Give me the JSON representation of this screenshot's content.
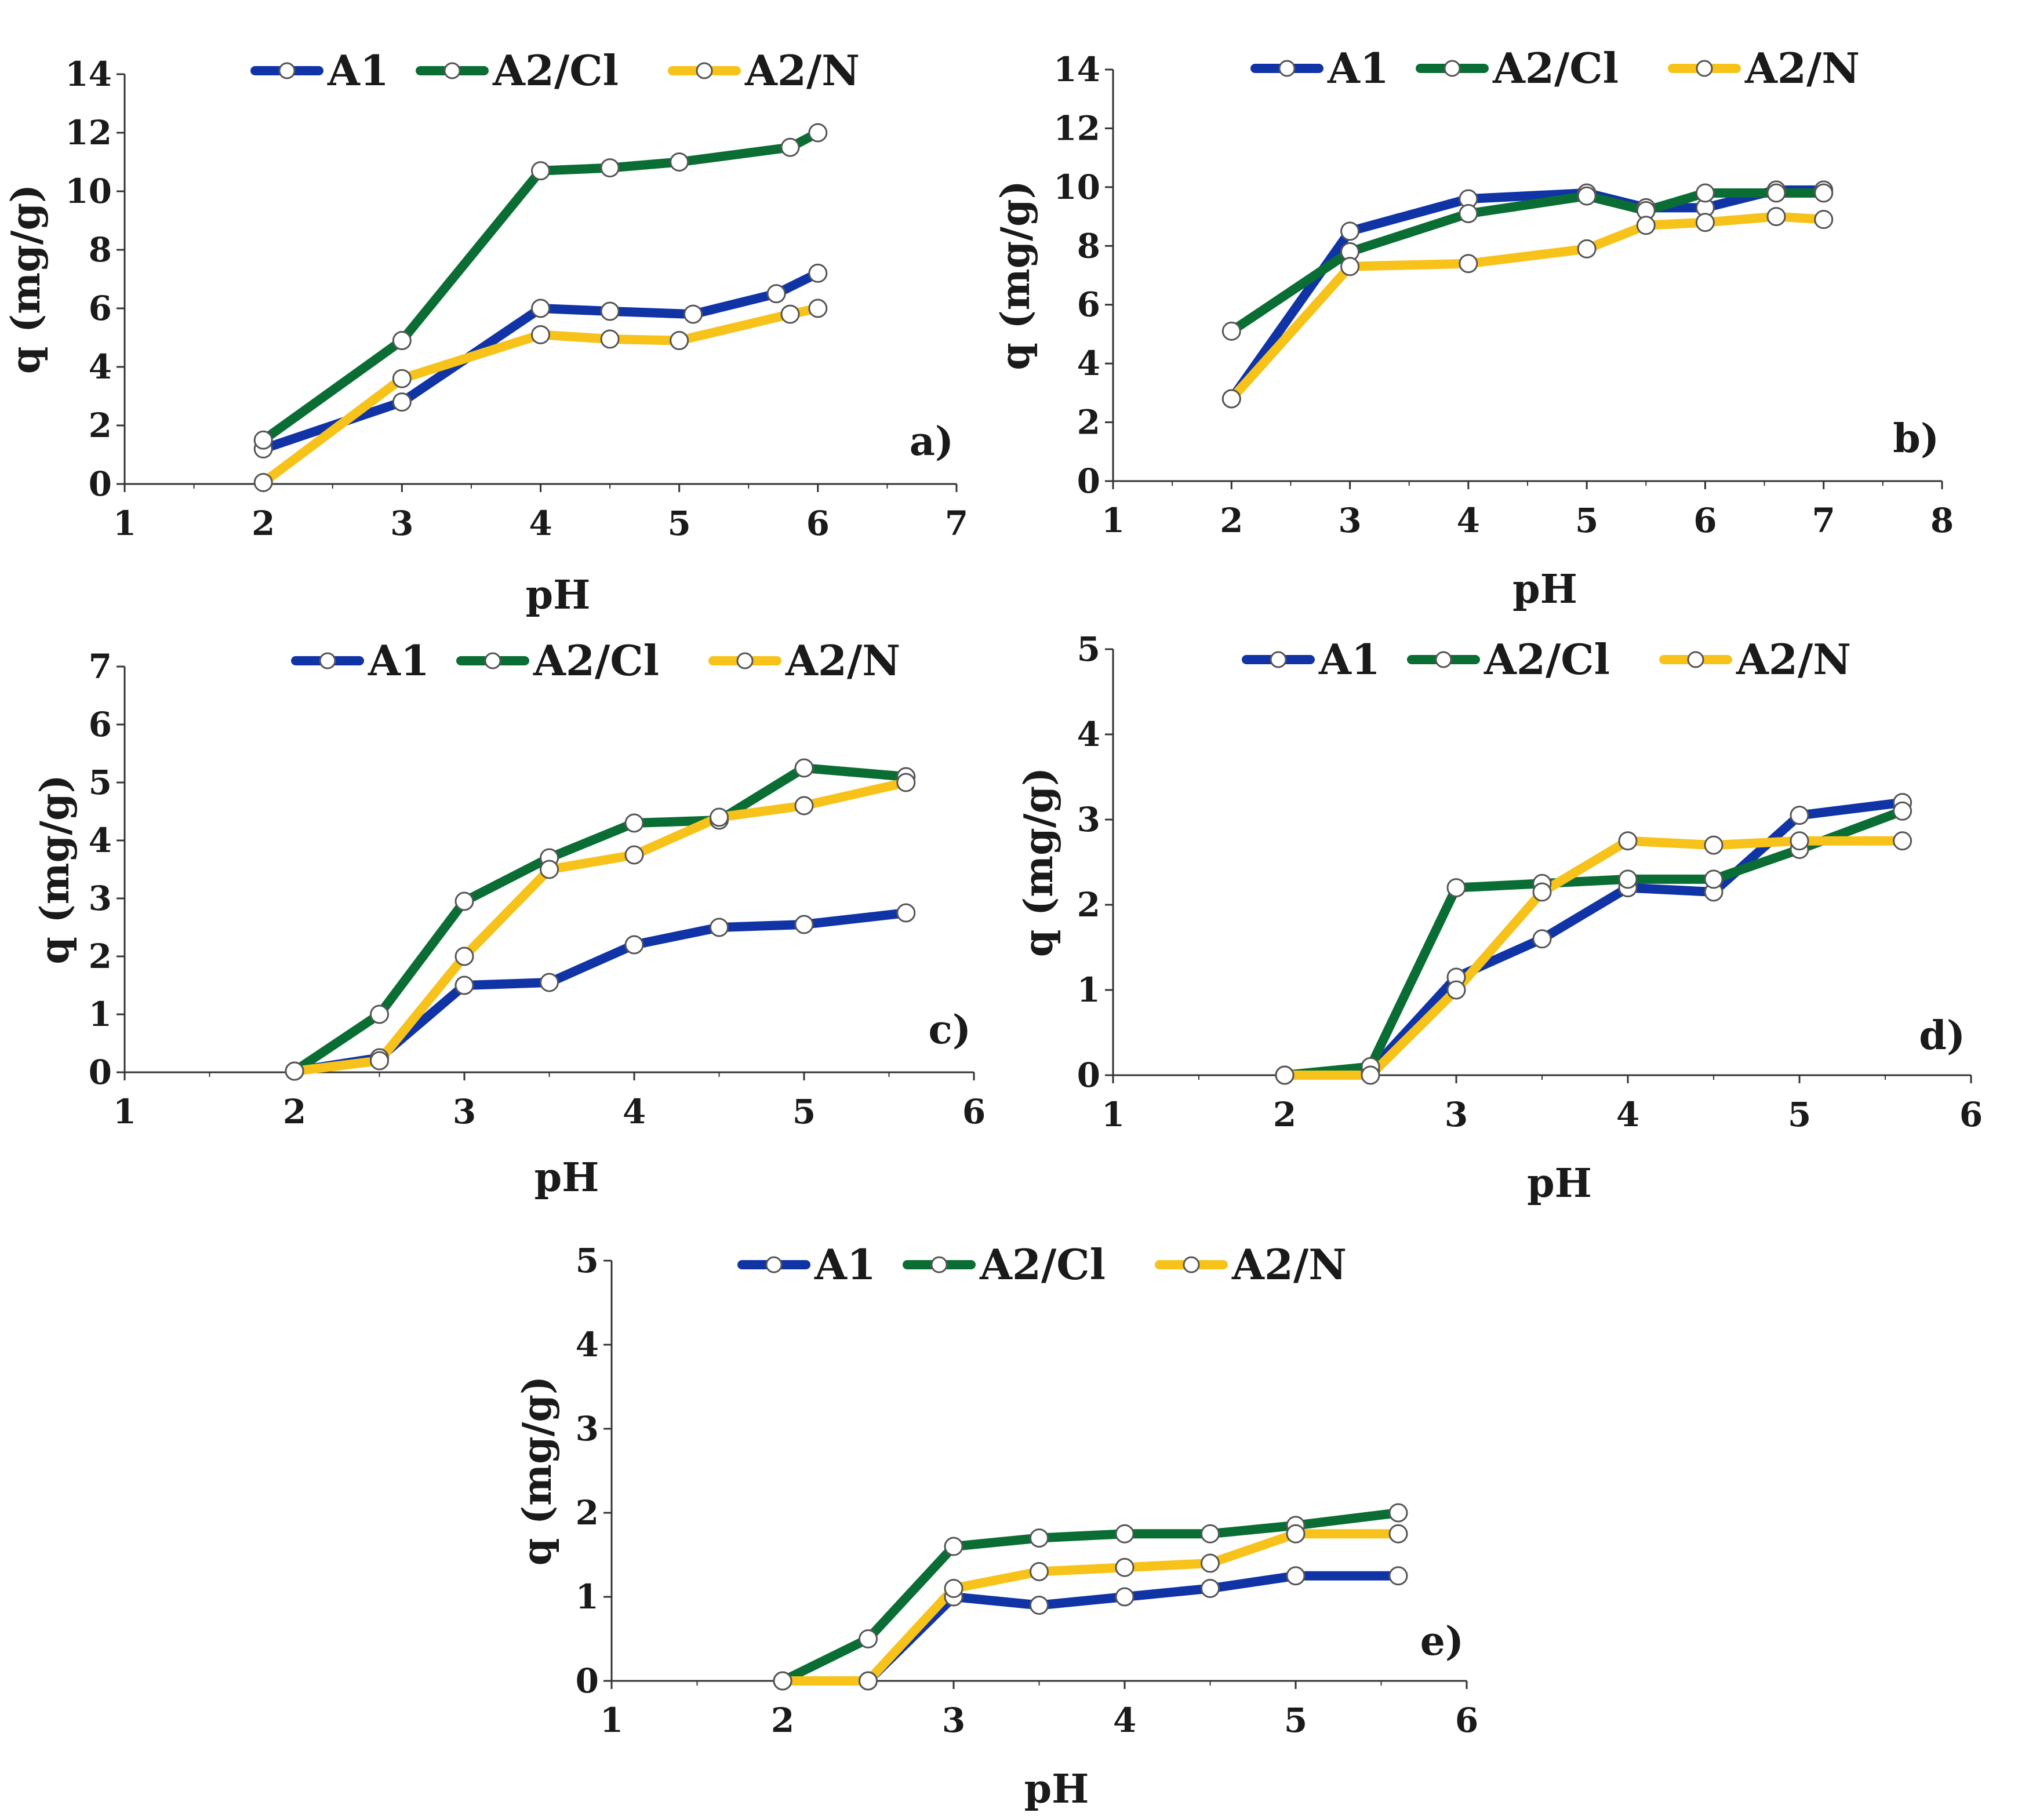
{
  "colors": {
    "A1": "#1034a6",
    "A2/Cl": "#0a6e34",
    "A2/N": "#f7c21a",
    "axis": "#333333",
    "marker_fill": "#ffffff",
    "marker_stroke": "#555555"
  },
  "chart_data": [
    {
      "id": "a",
      "type": "line",
      "tag": "a)",
      "xlabel": "pH",
      "ylabel": "q (mg/g)",
      "xlim": [
        1,
        7
      ],
      "ylim": [
        0,
        14
      ],
      "xticks": [
        1,
        2,
        3,
        4,
        5,
        6,
        7
      ],
      "yticks": [
        0,
        2,
        4,
        6,
        8,
        10,
        12,
        14
      ],
      "legend": [
        "A1",
        "A2/Cl",
        "A2/N"
      ],
      "series": [
        {
          "name": "A1",
          "x": [
            2,
            3,
            4,
            4.5,
            5.1,
            5.7,
            6
          ],
          "y": [
            1.2,
            2.8,
            6.0,
            5.9,
            5.8,
            6.5,
            7.2
          ]
        },
        {
          "name": "A2/Cl",
          "x": [
            2,
            3,
            4,
            4.5,
            5,
            5.8,
            6
          ],
          "y": [
            1.5,
            4.9,
            10.7,
            10.8,
            11.0,
            11.5,
            12.0
          ]
        },
        {
          "name": "A2/N",
          "x": [
            2,
            3,
            4,
            4.5,
            5,
            5.8,
            6
          ],
          "y": [
            0.05,
            3.6,
            5.1,
            4.95,
            4.9,
            5.8,
            6.0
          ]
        }
      ]
    },
    {
      "id": "b",
      "type": "line",
      "tag": "b)",
      "xlabel": "pH",
      "ylabel": "q (mg/g)",
      "xlim": [
        1,
        8
      ],
      "ylim": [
        0,
        14
      ],
      "xticks": [
        1,
        2,
        3,
        4,
        5,
        6,
        7,
        8
      ],
      "yticks": [
        0,
        2,
        4,
        6,
        8,
        10,
        12,
        14
      ],
      "legend": [
        "A1",
        "A2/Cl",
        "A2/N"
      ],
      "series": [
        {
          "name": "A1",
          "x": [
            2,
            3,
            4,
            5,
            5.5,
            6,
            6.6,
            7
          ],
          "y": [
            2.8,
            8.5,
            9.6,
            9.8,
            9.3,
            9.3,
            9.9,
            9.9
          ]
        },
        {
          "name": "A2/Cl",
          "x": [
            2,
            3,
            4,
            5,
            5.5,
            6,
            6.6,
            7
          ],
          "y": [
            5.1,
            7.8,
            9.1,
            9.7,
            9.2,
            9.8,
            9.8,
            9.8
          ]
        },
        {
          "name": "A2/N",
          "x": [
            2,
            3,
            4,
            5,
            5.5,
            6,
            6.6,
            7
          ],
          "y": [
            2.8,
            7.3,
            7.4,
            7.9,
            8.7,
            8.8,
            9.0,
            8.9
          ]
        }
      ]
    },
    {
      "id": "c",
      "type": "line",
      "tag": "c)",
      "xlabel": "pH",
      "ylabel": "q (mg/g)",
      "xlim": [
        1,
        6
      ],
      "ylim": [
        0,
        7
      ],
      "xticks": [
        1,
        2,
        3,
        4,
        5,
        6
      ],
      "yticks": [
        0,
        1,
        2,
        3,
        4,
        5,
        6,
        7
      ],
      "legend": [
        "A1",
        "A2/Cl",
        "A2/N"
      ],
      "series": [
        {
          "name": "A1",
          "x": [
            2,
            2.5,
            3,
            3.5,
            4,
            4.5,
            5,
            5.6
          ],
          "y": [
            0.02,
            0.25,
            1.5,
            1.55,
            2.2,
            2.5,
            2.55,
            2.75
          ]
        },
        {
          "name": "A2/Cl",
          "x": [
            2,
            2.5,
            3,
            3.5,
            4,
            4.5,
            5,
            5.6
          ],
          "y": [
            0.02,
            1.0,
            2.95,
            3.7,
            4.3,
            4.35,
            5.25,
            5.1
          ]
        },
        {
          "name": "A2/N",
          "x": [
            2,
            2.5,
            3,
            3.5,
            4,
            4.5,
            5,
            5.6
          ],
          "y": [
            0.02,
            0.2,
            2.0,
            3.5,
            3.75,
            4.4,
            4.6,
            5.0
          ]
        }
      ]
    },
    {
      "id": "d",
      "type": "line",
      "tag": "d)",
      "xlabel": "pH",
      "ylabel": "q (mg/g)",
      "xlim": [
        1,
        6
      ],
      "ylim": [
        0,
        5
      ],
      "xticks": [
        1,
        2,
        3,
        4,
        5,
        6
      ],
      "yticks": [
        0,
        1,
        2,
        3,
        4,
        5
      ],
      "legend": [
        "A1",
        "A2/Cl",
        "A2/N"
      ],
      "series": [
        {
          "name": "A1",
          "x": [
            2,
            2.5,
            3,
            3.5,
            4,
            4.5,
            5,
            5.6
          ],
          "y": [
            0.0,
            0.05,
            1.15,
            1.6,
            2.2,
            2.15,
            3.05,
            3.2
          ]
        },
        {
          "name": "A2/Cl",
          "x": [
            2,
            2.5,
            3,
            3.5,
            4,
            4.5,
            5,
            5.6
          ],
          "y": [
            0.0,
            0.1,
            2.2,
            2.25,
            2.3,
            2.3,
            2.65,
            3.1
          ]
        },
        {
          "name": "A2/N",
          "x": [
            2,
            2.5,
            3,
            3.5,
            4,
            4.5,
            5,
            5.6
          ],
          "y": [
            0.0,
            0.0,
            1.0,
            2.15,
            2.75,
            2.7,
            2.75,
            2.75
          ]
        }
      ]
    },
    {
      "id": "e",
      "type": "line",
      "tag": "e)",
      "xlabel": "pH",
      "ylabel": "q (mg/g)",
      "xlim": [
        1,
        6
      ],
      "ylim": [
        0,
        5
      ],
      "xticks": [
        1,
        2,
        3,
        4,
        5,
        6
      ],
      "yticks": [
        0,
        1,
        2,
        3,
        4,
        5
      ],
      "legend": [
        "A1",
        "A2/Cl",
        "A2/N"
      ],
      "series": [
        {
          "name": "A1",
          "x": [
            2,
            2.5,
            3,
            3.5,
            4,
            4.5,
            5,
            5.6
          ],
          "y": [
            0.0,
            0.0,
            1.0,
            0.9,
            1.0,
            1.1,
            1.25,
            1.25
          ]
        },
        {
          "name": "A2/Cl",
          "x": [
            2,
            2.5,
            3,
            3.5,
            4,
            4.5,
            5,
            5.6
          ],
          "y": [
            0.0,
            0.5,
            1.6,
            1.7,
            1.75,
            1.75,
            1.85,
            2.0
          ]
        },
        {
          "name": "A2/N",
          "x": [
            2,
            2.5,
            3,
            3.5,
            4,
            4.5,
            5,
            5.6
          ],
          "y": [
            0.0,
            0.0,
            1.1,
            1.3,
            1.35,
            1.4,
            1.75,
            1.75
          ]
        }
      ]
    }
  ]
}
